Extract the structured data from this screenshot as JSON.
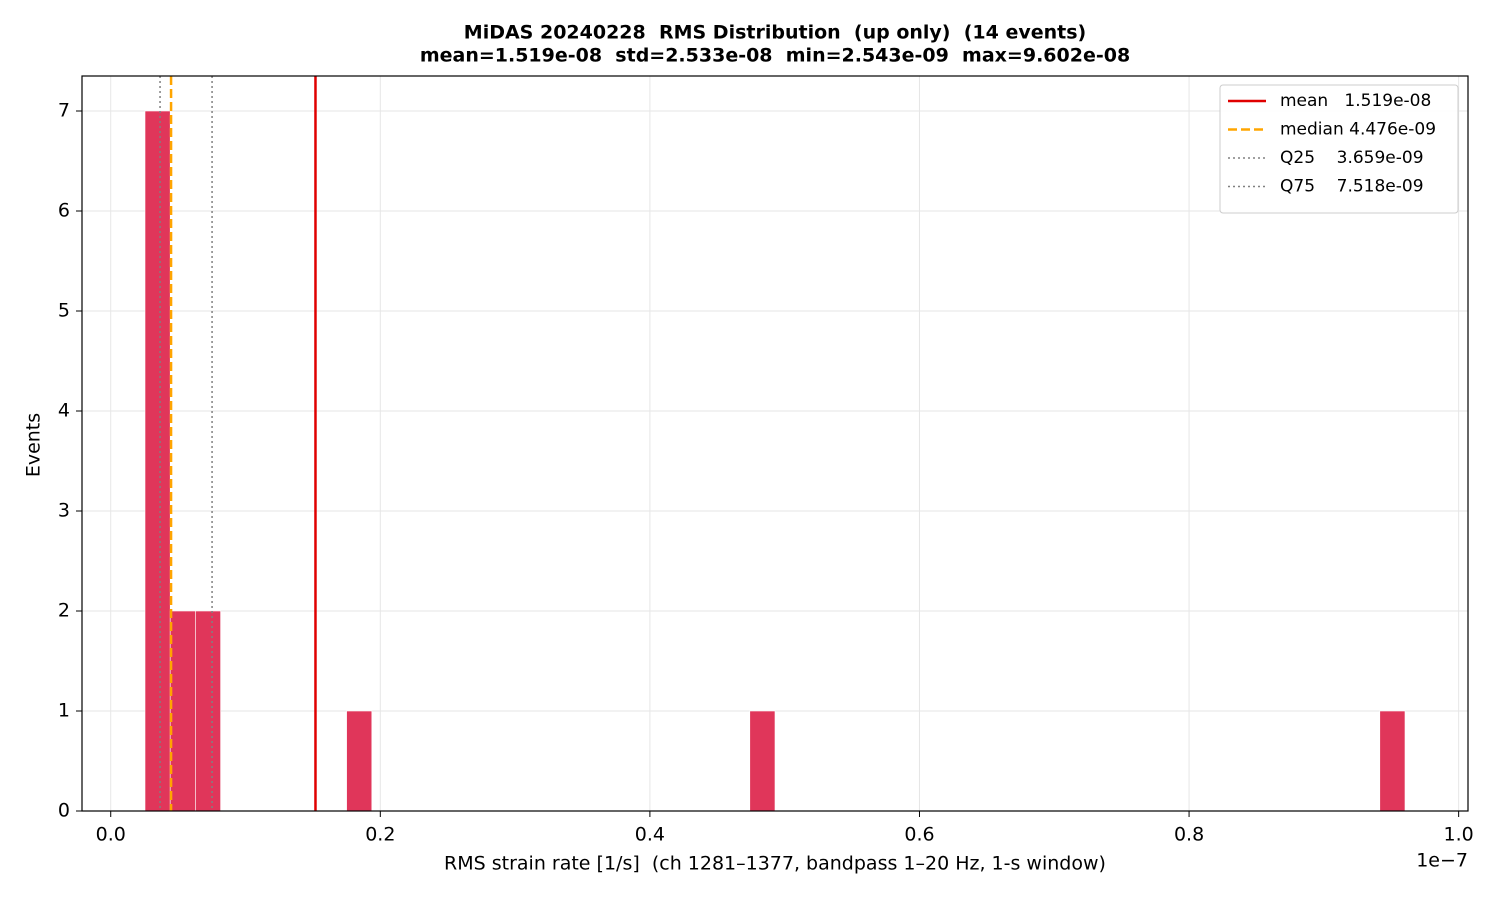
{
  "chart_data": {
    "type": "histogram",
    "title": "MiDAS 20240228  RMS Distribution  (up only)  (14 events)",
    "subtitle": "mean=1.519e-08  std=2.533e-08  min=2.543e-09  max=9.602e-08",
    "xlabel": "RMS strain rate [1/s]  (ch 1281–1377, bandpass 1–20 Hz, 1-s window)",
    "ylabel": "Events",
    "x_offset_label": "1e−7",
    "color": "#e0365a",
    "bins": [
      2.543e-09,
      4.41254e-09,
      6.28208e-09,
      8.15162e-09,
      1.002116e-08,
      1.18907e-08,
      1.376024e-08,
      1.562978e-08,
      1.749932e-08,
      1.936886e-08,
      2.12384e-08,
      2.310794e-08,
      2.497748e-08,
      2.684702e-08,
      2.871656e-08,
      3.05861e-08,
      3.245564e-08,
      3.432518e-08,
      3.619472e-08,
      3.806426e-08,
      3.99338e-08,
      4.180334e-08,
      4.367288e-08,
      4.554242e-08,
      4.741196e-08,
      4.92815e-08,
      5.115104e-08,
      5.302058e-08,
      5.489012e-08,
      5.675966e-08,
      5.86292e-08,
      6.049874e-08,
      6.236828e-08,
      6.423782e-08,
      6.610736e-08,
      6.79769e-08,
      6.984644e-08,
      7.171598e-08,
      7.358552e-08,
      7.545506e-08,
      7.73246e-08,
      7.919414e-08,
      8.106368e-08,
      8.293322e-08,
      8.480276e-08,
      8.66723e-08,
      8.854184e-08,
      9.041138e-08,
      9.228092e-08,
      9.415046e-08,
      9.602e-08
    ],
    "values": [
      7,
      2,
      2,
      0,
      0,
      0,
      0,
      0,
      1,
      0,
      0,
      0,
      0,
      0,
      0,
      0,
      0,
      0,
      0,
      0,
      0,
      0,
      0,
      0,
      1,
      0,
      0,
      0,
      0,
      0,
      0,
      0,
      0,
      0,
      0,
      0,
      0,
      0,
      0,
      0,
      0,
      0,
      0,
      0,
      0,
      0,
      0,
      0,
      0,
      1
    ],
    "lines": [
      {
        "name": "mean   1.519e-08",
        "value": 1.519e-08,
        "color": "#e00000",
        "style": "solid"
      },
      {
        "name": "median 4.476e-09",
        "value": 4.476e-09,
        "color": "#ffa500",
        "style": "dashed"
      },
      {
        "name": "Q25    3.659e-09",
        "value": 3.659e-09,
        "color": "#808080",
        "style": "dotted"
      },
      {
        "name": "Q75    7.518e-09",
        "value": 7.518e-09,
        "color": "#808080",
        "style": "dotted"
      }
    ],
    "xlim": [
      -2.131e-09,
      1.00694e-07
    ],
    "xticks": [
      {
        "value": 0,
        "label": "0.0"
      },
      {
        "value": 2e-08,
        "label": "0.2"
      },
      {
        "value": 4e-08,
        "label": "0.4"
      },
      {
        "value": 6e-08,
        "label": "0.6"
      },
      {
        "value": 8e-08,
        "label": "0.8"
      },
      {
        "value": 1e-07,
        "label": "1.0"
      }
    ],
    "ylim": [
      0,
      7.35
    ],
    "yticks": [
      0,
      1,
      2,
      3,
      4,
      5,
      6,
      7
    ],
    "grid": true,
    "legend": "upper right"
  }
}
